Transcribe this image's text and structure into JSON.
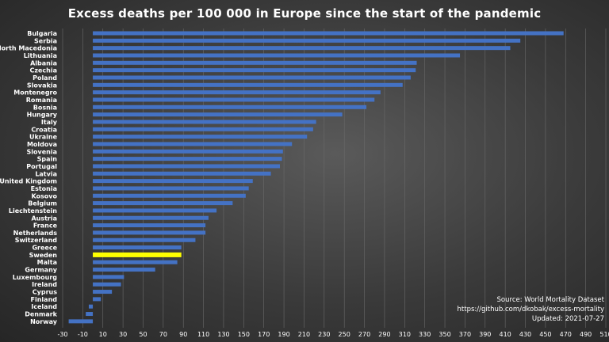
{
  "chart_data": {
    "type": "bar",
    "orientation": "horizontal",
    "title": "Excess deaths per 100 000 in Europe since the start of the pandemic",
    "categories": [
      "Bulgaria",
      "Serbia",
      "North Macedonia",
      "Lithuania",
      "Albania",
      "Czechia",
      "Poland",
      "Slovakia",
      "Montenegro",
      "Romania",
      "Bosnia",
      "Hungary",
      "Italy",
      "Croatia",
      "Ukraine",
      "Moldova",
      "Slovenia",
      "Spain",
      "Portugal",
      "Latvia",
      "United Kingdom",
      "Estonia",
      "Kosovo",
      "Belgium",
      "Liechtenstein",
      "Austria",
      "France",
      "Netherlands",
      "Switzerland",
      "Greece",
      "Sweden",
      "Malta",
      "Germany",
      "Luxembourg",
      "Ireland",
      "Cyprus",
      "Finland",
      "Iceland",
      "Denmark",
      "Norway"
    ],
    "values": [
      468,
      425,
      415,
      365,
      322,
      321,
      316,
      308,
      286,
      280,
      272,
      248,
      222,
      219,
      213,
      198,
      189,
      188,
      186,
      177,
      159,
      155,
      152,
      139,
      123,
      115,
      112,
      112,
      102,
      88,
      88,
      84,
      62,
      31,
      28,
      19,
      8,
      -4,
      -7,
      -24
    ],
    "highlight": "Sweden",
    "colors": {
      "bar": "#4472c4",
      "highlight": "#ffff00"
    },
    "xlim": [
      -30,
      510
    ],
    "xticks": [
      -30,
      -10,
      10,
      30,
      50,
      70,
      90,
      110,
      130,
      150,
      170,
      190,
      210,
      230,
      250,
      270,
      290,
      310,
      330,
      350,
      370,
      390,
      410,
      430,
      450,
      470,
      490,
      510
    ],
    "grid": "vertical"
  },
  "source": {
    "line1": "Source: World Mortality Dataset",
    "line2": "https://github.com/dkobak/excess-mortality",
    "line3": "Updated: 2021-07-27"
  }
}
